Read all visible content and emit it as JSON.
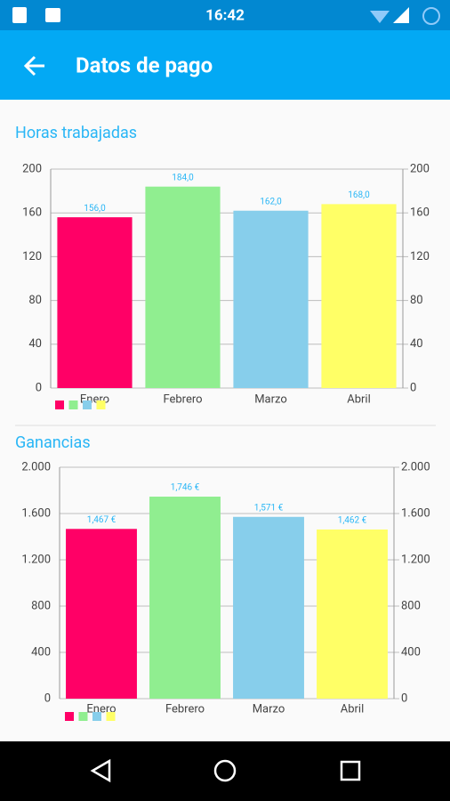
{
  "status_bar": {
    "time": "16:42"
  },
  "app_bar": {
    "title": "Datos de pago"
  },
  "chart_data": [
    {
      "type": "bar",
      "title": "Horas trabajadas",
      "categories": [
        "Enero",
        "Febrero",
        "Marzo",
        "Abril"
      ],
      "values": [
        156,
        184,
        162,
        168
      ],
      "value_labels": [
        "156,0",
        "184,0",
        "162,0",
        "168,0"
      ],
      "colors": [
        "#ff0066",
        "#90ee90",
        "#87ceeb",
        "#ffff66"
      ],
      "ylim": [
        0,
        200
      ],
      "yticks": [
        0,
        40,
        80,
        120,
        160,
        200
      ],
      "y2lim": [
        0,
        200
      ],
      "y2ticks": [
        0,
        40,
        80,
        120,
        160,
        200
      ],
      "grid": true
    },
    {
      "type": "bar",
      "title": "Ganancias",
      "categories": [
        "Enero",
        "Febrero",
        "Marzo",
        "Abril"
      ],
      "values": [
        1467,
        1746,
        1571,
        1462
      ],
      "value_labels": [
        "1,467 €",
        "1,746 €",
        "1,571 €",
        "1,462 €"
      ],
      "colors": [
        "#ff0066",
        "#90ee90",
        "#87ceeb",
        "#ffff66"
      ],
      "ylim": [
        0,
        2000
      ],
      "yticks": [
        0,
        400,
        800,
        {
          "value": 1200,
          "label": "1.200"
        },
        {
          "value": 1600,
          "label": "1.600"
        },
        {
          "value": 2000,
          "label": "2.000"
        }
      ],
      "y2lim": [
        0,
        2000
      ],
      "y2ticks": [
        0,
        400,
        800,
        {
          "value": 1200,
          "label": "1.200"
        },
        {
          "value": 1600,
          "label": "1.600"
        },
        {
          "value": 2000,
          "label": "2.000"
        }
      ],
      "grid": true
    }
  ]
}
